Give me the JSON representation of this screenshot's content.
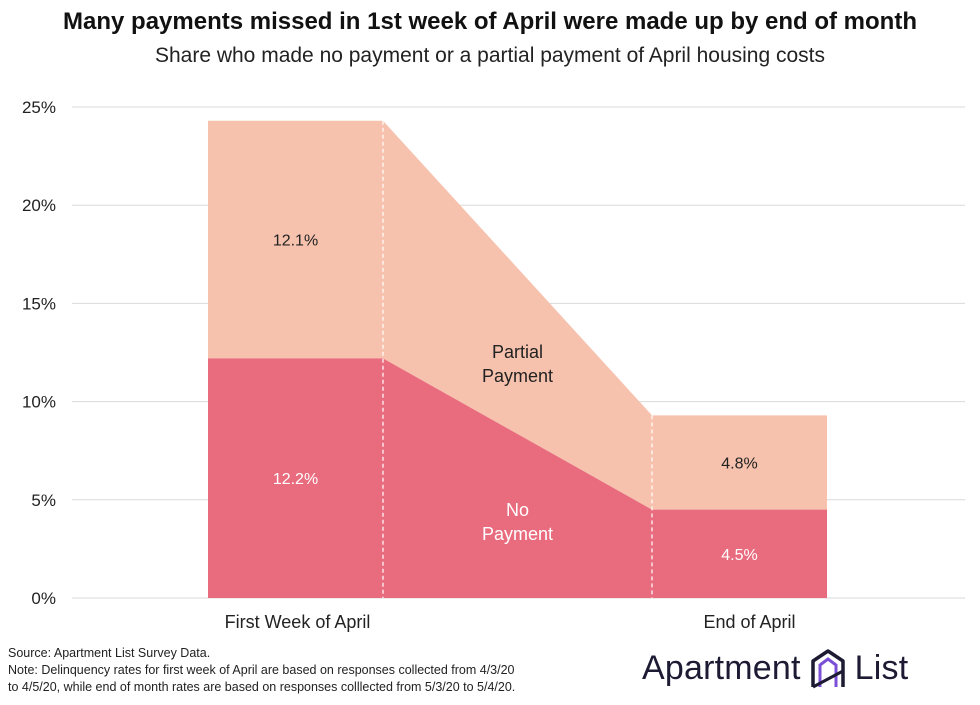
{
  "title": "Many payments missed in 1st week of April were made up by end of month",
  "subtitle": "Share who made no payment or a partial payment of April housing costs",
  "chart_data": {
    "type": "area",
    "categories": [
      "First Week of April",
      "End of April"
    ],
    "series": [
      {
        "name": "No Payment",
        "label_lines": [
          "No",
          "Payment"
        ],
        "values": [
          12.2,
          4.5
        ],
        "labels": [
          "12.2%",
          "4.5%"
        ],
        "color": "#e96b7e"
      },
      {
        "name": "Partial Payment",
        "label_lines": [
          "Partial",
          "Payment"
        ],
        "values": [
          12.1,
          4.8
        ],
        "labels": [
          "12.1%",
          "4.8%"
        ],
        "color": "#f6c2ad"
      }
    ],
    "stacked": true,
    "ylim": [
      0,
      25
    ],
    "yticks": [
      0,
      5,
      10,
      15,
      20,
      25
    ],
    "ytick_labels": [
      "0%",
      "5%",
      "10%",
      "15%",
      "20%",
      "25%"
    ],
    "grid": true
  },
  "footer": {
    "source": "Source: Apartment List Survey Data.",
    "note_line1": "Note: Delinquency rates for first week of April are based on responses collected from 4/3/20",
    "note_line2": "to 4/5/20, while end of month rates are based on responses colllected from 5/3/20 to 5/4/20."
  },
  "brand": {
    "name": "Apartment List",
    "word1": "Apartment",
    "word2": "List"
  }
}
